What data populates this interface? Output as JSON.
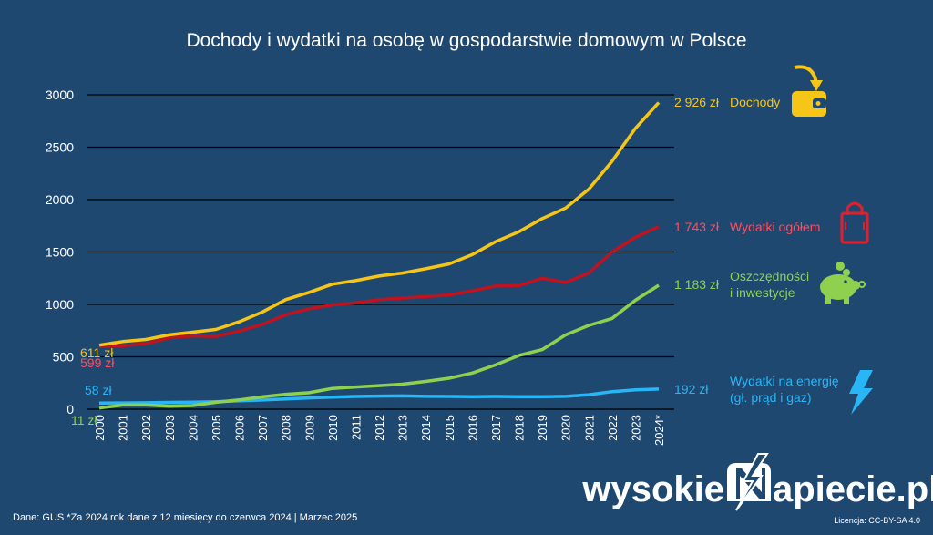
{
  "chart_data": {
    "type": "line",
    "title": "Dochody i wydatki na osobę w gospodarstwie domowym w Polsce",
    "categories": [
      "2000",
      "2001",
      "2002",
      "2003",
      "2004",
      "2005",
      "2006",
      "2007",
      "2008",
      "2009",
      "2010",
      "2011",
      "2012",
      "2013",
      "2014",
      "2015",
      "2016",
      "2017",
      "2018",
      "2019",
      "2020",
      "2021",
      "2022",
      "2023",
      "2024*"
    ],
    "ylim": [
      0,
      3000
    ],
    "yticks": [
      0,
      500,
      1000,
      1500,
      2000,
      2500,
      3000
    ],
    "grid": "horizontal",
    "legend": "right",
    "series": [
      {
        "name": "Dochody",
        "color": "#f5c518",
        "start_label": "611 zł",
        "end_label": "2 926 zł",
        "icon": "wallet-icon",
        "values": [
          611,
          645,
          665,
          710,
          735,
          761,
          834,
          928,
          1046,
          1115,
          1193,
          1227,
          1270,
          1299,
          1340,
          1386,
          1475,
          1598,
          1693,
          1819,
          1919,
          2100,
          2366,
          2680,
          2926
        ]
      },
      {
        "name": "Wydatki ogółem",
        "color": "#c0121f",
        "label_color": "#ff4d5e",
        "start_label": "599 zł",
        "end_label": "1 743 zł",
        "icon": "shopping-bag-icon",
        "values": [
          599,
          605,
          625,
          680,
          700,
          695,
          745,
          810,
          903,
          958,
          995,
          1015,
          1045,
          1060,
          1075,
          1090,
          1130,
          1175,
          1180,
          1250,
          1210,
          1300,
          1500,
          1640,
          1743
        ]
      },
      {
        "name": "Oszczędności i inwestycje",
        "name_lines": [
          "Oszczędności",
          "i inwestycje"
        ],
        "color": "#8fd14f",
        "start_label": "11 zł",
        "end_label": "1 183 zł",
        "icon": "piggy-bank-icon",
        "values": [
          11,
          40,
          40,
          30,
          35,
          66,
          89,
          118,
          143,
          157,
          198,
          212,
          225,
          239,
          265,
          296,
          345,
          423,
          513,
          569,
          709,
          800,
          866,
          1040,
          1183
        ]
      },
      {
        "name": "Wydatki na energię (gł. prąd i gaz)",
        "name_lines": [
          "Wydatki na energię",
          "(gł. prąd i gaz)"
        ],
        "color": "#29b6f6",
        "start_label": "58 zł",
        "end_label": "192 zł",
        "icon": "lightning-icon",
        "values": [
          58,
          60,
          62,
          65,
          67,
          72,
          80,
          88,
          98,
          108,
          116,
          122,
          125,
          127,
          123,
          122,
          120,
          122,
          120,
          120,
          123,
          138,
          168,
          185,
          192
        ]
      }
    ]
  },
  "footer": {
    "source": "Dane: GUS  *Za 2024 rok dane z 12 miesięcy do czerwca 2024    |  Marzec 2025",
    "license": "Licencja: CC-BY-SA 4.0",
    "brand_left": "wysokie",
    "brand_right": "apiecie.pl"
  }
}
